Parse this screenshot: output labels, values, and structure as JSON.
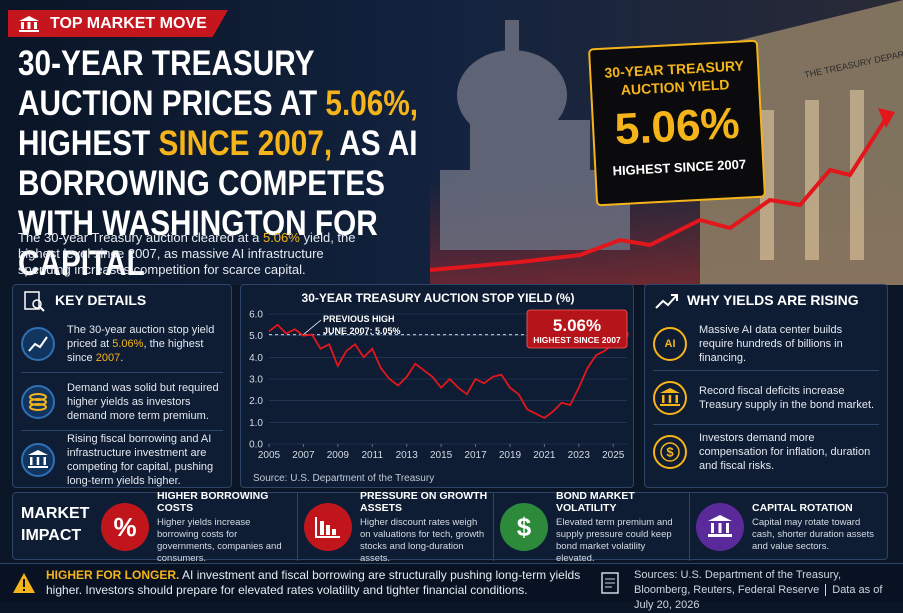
{
  "badge": "TOP MARKET MOVE",
  "headline": [
    {
      "text": "30-YEAR TREASURY AUCTION PRICES AT ",
      "highlight": false
    },
    {
      "text": "5.06%,",
      "highlight": true
    },
    {
      "text": " HIGHEST ",
      "highlight": false
    },
    {
      "text": "SINCE 2007,",
      "highlight": true
    },
    {
      "text": " AS AI BORROWING COMPETES WITH WASHINGTON FOR CAPITAL",
      "highlight": false
    }
  ],
  "intro": [
    {
      "text": "The 30-year Treasury auction cleared at a ",
      "highlight": false
    },
    {
      "text": "5.06%",
      "highlight": true
    },
    {
      "text": " yield, the highest level since 2007, as massive AI infrastructure spending increases competition for scarce capital.",
      "highlight": false
    }
  ],
  "building_inscription": "THE TREASURY DEPARTMENT",
  "callout": {
    "title": "30-YEAR TREASURY AUCTION YIELD",
    "value": "5.06%",
    "subtitle": "HIGHEST SINCE 2007"
  },
  "key_details": {
    "title": "KEY DETAILS",
    "items": [
      [
        {
          "text": "The 30-year auction stop yield priced at ",
          "highlight": false
        },
        {
          "text": "5.06%",
          "highlight": true
        },
        {
          "text": ", the highest since ",
          "highlight": false
        },
        {
          "text": "2007",
          "highlight": true
        },
        {
          "text": ".",
          "highlight": false
        }
      ],
      [
        {
          "text": "Demand was solid but required higher yields as investors demand more term premium.",
          "highlight": false
        }
      ],
      [
        {
          "text": "Rising fiscal borrowing and AI infrastructure investment are competing for capital, pushing long-term yields higher.",
          "highlight": false
        }
      ]
    ]
  },
  "chart_data": {
    "type": "line",
    "title": "30-YEAR TREASURY AUCTION STOP YIELD (%)",
    "color": "#e3161c",
    "x": [
      2005,
      2005.5,
      2006,
      2006.5,
      2007,
      2007.5,
      2008,
      2008.5,
      2009,
      2009.5,
      2010,
      2010.5,
      2011,
      2011.5,
      2012,
      2012.5,
      2013,
      2013.5,
      2014,
      2014.5,
      2015,
      2015.5,
      2016,
      2016.5,
      2017,
      2017.5,
      2018,
      2018.5,
      2019,
      2019.5,
      2020,
      2020.5,
      2021,
      2021.5,
      2022,
      2022.5,
      2023,
      2023.5,
      2024,
      2024.5,
      2025,
      2025.6
    ],
    "values": [
      5.2,
      5.5,
      5.1,
      5.3,
      5.0,
      5.05,
      4.4,
      4.6,
      3.6,
      4.3,
      4.6,
      4.0,
      4.4,
      3.5,
      3.0,
      2.7,
      3.1,
      3.7,
      3.4,
      3.1,
      2.6,
      3.0,
      2.6,
      2.3,
      3.0,
      2.8,
      3.1,
      3.2,
      2.6,
      2.3,
      1.6,
      1.4,
      1.2,
      1.5,
      1.9,
      1.8,
      2.6,
      3.5,
      4.1,
      4.3,
      4.6,
      5.06
    ],
    "reference_value": 5.05,
    "xlim": [
      2005,
      2025.8
    ],
    "ylim": [
      0,
      6
    ],
    "xticks": [
      2005,
      2007,
      2009,
      2011,
      2013,
      2015,
      2017,
      2019,
      2021,
      2023,
      2025
    ],
    "yticks": [
      {
        "value": 0,
        "label": "0.0"
      },
      {
        "value": 1,
        "label": "1.0"
      },
      {
        "value": 2,
        "label": "2.0"
      },
      {
        "value": 3,
        "label": "3.0"
      },
      {
        "value": 4,
        "label": "4.0"
      },
      {
        "value": 5,
        "label": "5.0"
      },
      {
        "value": 6,
        "label": "6.0"
      }
    ],
    "annotations": {
      "previous_high": "PREVIOUS HIGH",
      "previous_high_detail": "JUNE 2007: 5.05%",
      "callout_value": "5.06%",
      "callout_label": "HIGHEST SINCE 2007"
    },
    "source": "Source: U.S. Department of the Treasury"
  },
  "why": {
    "title": "WHY YIELDS ARE RISING",
    "items": [
      {
        "icon": "AI",
        "text": "Massive AI data center builds require hundreds of billions in financing."
      },
      {
        "text": "Record fiscal deficits increase Treasury supply in the bond market."
      },
      {
        "text": "Investors demand more compensation for inflation, duration and fiscal risks."
      }
    ]
  },
  "market_impact": {
    "label": "MARKET IMPACT",
    "items": [
      {
        "icon": "%",
        "title": "HIGHER BORROWING COSTS",
        "text": "Higher yields increase borrowing costs for governments, companies and consumers."
      },
      {
        "title": "PRESSURE ON GROWTH ASSETS",
        "text": "Higher discount rates weigh on valuations for tech, growth stocks and long-duration assets."
      },
      {
        "icon": "$",
        "title": "BOND MARKET VOLATILITY",
        "text": "Elevated term premium and supply pressure could keep bond market volatility elevated."
      },
      {
        "title": "CAPITAL ROTATION",
        "text": "Capital may rotate toward cash, shorter duration assets and value sectors."
      }
    ]
  },
  "footer": {
    "headline": "HIGHER FOR LONGER.",
    "text": "AI investment and fiscal borrowing are structurally pushing long-term yields higher. Investors should prepare for elevated rates volatility and tighter financial conditions.",
    "sources": "Sources: U.S. Department of the Treasury, Bloomberg, Reuters, Federal Reserve",
    "date": "Data as of July 20, 2026"
  }
}
